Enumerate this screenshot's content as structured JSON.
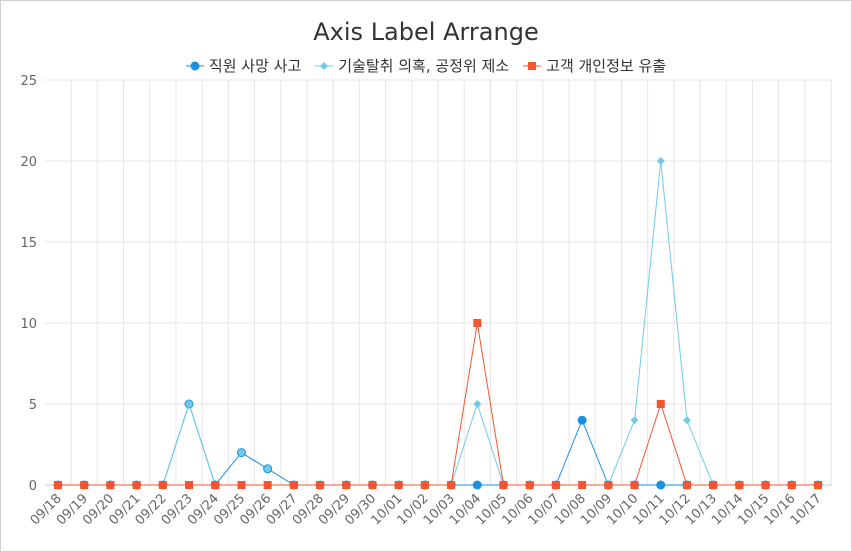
{
  "chart_data": {
    "type": "line",
    "title": "Axis Label Arrange",
    "xlabel": "",
    "ylabel": "",
    "ylim": [
      0,
      25
    ],
    "yticks": [
      0,
      5,
      10,
      15,
      20,
      25
    ],
    "grid": true,
    "legend_position": "top",
    "categories": [
      "09/18",
      "09/19",
      "09/20",
      "09/21",
      "09/22",
      "09/23",
      "09/24",
      "09/25",
      "09/26",
      "09/27",
      "09/28",
      "09/29",
      "09/30",
      "10/01",
      "10/02",
      "10/03",
      "10/04",
      "10/05",
      "10/06",
      "10/07",
      "10/08",
      "10/09",
      "10/10",
      "10/11",
      "10/12",
      "10/13",
      "10/14",
      "10/15",
      "10/16",
      "10/17"
    ],
    "series": [
      {
        "name": "직원 사망 사고",
        "color": "#1a8fe3",
        "marker": "circle",
        "values": [
          0,
          0,
          0,
          0,
          0,
          5,
          0,
          2,
          1,
          0,
          0,
          0,
          0,
          0,
          0,
          0,
          0,
          0,
          0,
          0,
          4,
          0,
          0,
          0,
          0,
          0,
          0,
          0,
          0,
          0
        ]
      },
      {
        "name": "기술탈취 의혹, 공정위 제소",
        "color": "#6fcbea",
        "marker": "diamond",
        "values": [
          0,
          0,
          0,
          0,
          0,
          5,
          0,
          0,
          0,
          0,
          0,
          0,
          0,
          0,
          0,
          0,
          5,
          0,
          0,
          0,
          0,
          0,
          4,
          20,
          4,
          0,
          0,
          0,
          0,
          0
        ]
      },
      {
        "name": "고객 개인정보 유출",
        "color": "#f4552f",
        "marker": "square",
        "values": [
          0,
          0,
          0,
          0,
          0,
          0,
          0,
          0,
          0,
          0,
          0,
          0,
          0,
          0,
          0,
          0,
          10,
          0,
          0,
          0,
          0,
          0,
          0,
          5,
          0,
          0,
          0,
          0,
          0,
          0
        ]
      }
    ]
  }
}
